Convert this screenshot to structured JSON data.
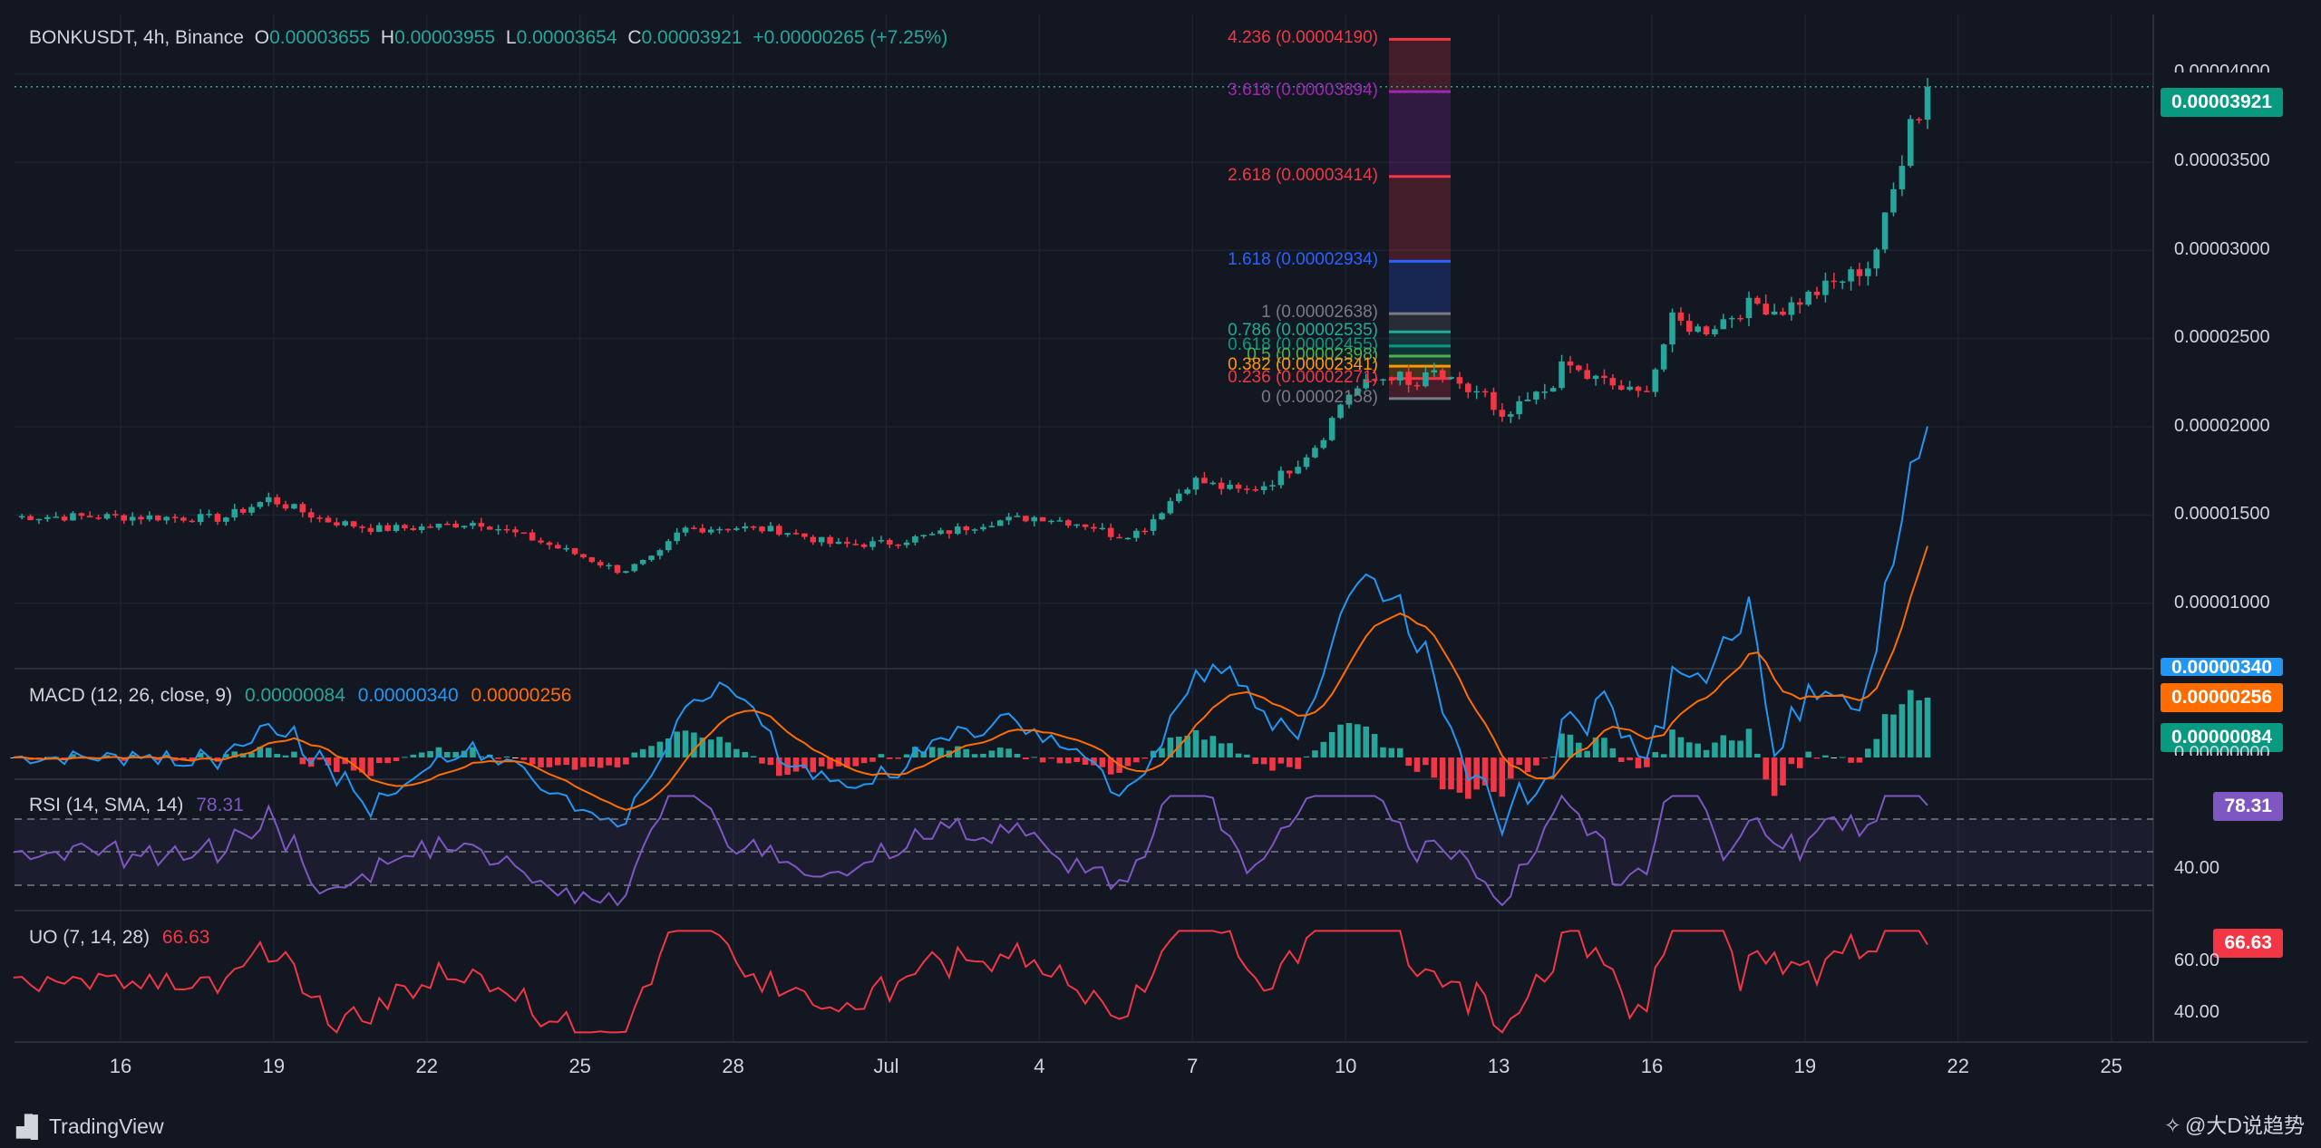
{
  "header": {
    "symbol": "BONKUSDT, 4h, Binance",
    "o_label": "O",
    "o_value": "0.00003655",
    "h_label": "H",
    "h_value": "0.00003955",
    "l_label": "L",
    "l_value": "0.00003654",
    "c_label": "C",
    "c_value": "0.00003921",
    "change": "+0.00000265 (+7.25%)"
  },
  "price_badge": "0.00003921",
  "price_axis": [
    "0.00004000",
    "0.00003500",
    "0.00003000",
    "0.00002500",
    "0.00002000",
    "0.00001500",
    "0.00001000"
  ],
  "fib_levels": [
    {
      "label": "4.236 (0.00004190)",
      "value": 4.19e-05,
      "color": "#f23645"
    },
    {
      "label": "3.618 (0.00003894)",
      "value": 3.894e-05,
      "color": "#9c27b0"
    },
    {
      "label": "2.618 (0.00003414)",
      "value": 3.414e-05,
      "color": "#f23645"
    },
    {
      "label": "1.618 (0.00002934)",
      "value": 2.934e-05,
      "color": "#2962ff"
    },
    {
      "label": "1 (0.00002638)",
      "value": 2.638e-05,
      "color": "#787b86"
    },
    {
      "label": "0.786 (0.00002535)",
      "value": 2.535e-05,
      "color": "#22ab94"
    },
    {
      "label": "0.618 (0.00002455)",
      "value": 2.455e-05,
      "color": "#089981"
    },
    {
      "label": "0.5 (0.00002398)",
      "value": 2.398e-05,
      "color": "#4caf50"
    },
    {
      "label": "0.382 (0.00002341)",
      "value": 2.341e-05,
      "color": "#ff9800"
    },
    {
      "label": "0.236 (0.00002271)",
      "value": 2.271e-05,
      "color": "#f23645"
    },
    {
      "label": "0 (0.00002158)",
      "value": 2.158e-05,
      "color": "#787b86"
    }
  ],
  "macd": {
    "title": "MACD (12, 26, close, 9)",
    "hist": "0.00000084",
    "macd": "0.00000340",
    "signal": "0.00000256",
    "axis_zero": "0.00000000"
  },
  "rsi": {
    "title": "RSI (14, SMA, 14)",
    "value": "78.31",
    "axis": "40.00"
  },
  "uo": {
    "title": "UO (7, 14, 28)",
    "value": "66.63",
    "axis": [
      "60.00",
      "40.00"
    ]
  },
  "x_axis": [
    "16",
    "19",
    "22",
    "25",
    "28",
    "Jul",
    "4",
    "7",
    "10",
    "13",
    "16",
    "19",
    "22",
    "25"
  ],
  "branding": {
    "left": "TradingView",
    "right": "@大D说趋势"
  },
  "colors": {
    "up": "#26a69a",
    "down": "#f23645",
    "macd": "#2196f3",
    "signal": "#ff6d00",
    "rsi": "#7e57c2",
    "uo": "#f23645",
    "bg": "#131722"
  },
  "chart_data": {
    "type": "candlestick",
    "title": "BONKUSDT, 4h, Binance",
    "ylim": [
      6.3e-06,
      4.33e-05
    ],
    "anchors": [
      {
        "day": 0,
        "close": 1.49e-05
      },
      {
        "day": 2,
        "close": 1.48e-05
      },
      {
        "day": 2.9,
        "close": 1.59e-05
      },
      {
        "day": 4,
        "close": 1.47e-05
      },
      {
        "day": 5,
        "close": 1.42e-05
      },
      {
        "day": 6,
        "close": 1.43e-05
      },
      {
        "day": 7,
        "close": 1.46e-05
      },
      {
        "day": 8,
        "close": 1.37e-05
      },
      {
        "day": 9,
        "close": 1.27e-05
      },
      {
        "day": 9.8,
        "close": 1.18e-05
      },
      {
        "day": 10.5,
        "close": 1.26e-05
      },
      {
        "day": 11,
        "close": 1.42e-05
      },
      {
        "day": 12,
        "close": 1.43e-05
      },
      {
        "day": 13,
        "close": 1.41e-05
      },
      {
        "day": 14,
        "close": 1.33e-05
      },
      {
        "day": 15,
        "close": 1.34e-05
      },
      {
        "day": 16,
        "close": 1.39e-05
      },
      {
        "day": 17,
        "close": 1.46e-05
      },
      {
        "day": 18,
        "close": 1.49e-05
      },
      {
        "day": 19,
        "close": 1.44e-05
      },
      {
        "day": 19.5,
        "close": 1.38e-05
      },
      {
        "day": 20,
        "close": 1.41e-05
      },
      {
        "day": 20.5,
        "close": 1.56e-05
      },
      {
        "day": 21,
        "close": 1.7e-05
      },
      {
        "day": 21.5,
        "close": 1.66e-05
      },
      {
        "day": 22,
        "close": 1.63e-05
      },
      {
        "day": 22.5,
        "close": 1.68e-05
      },
      {
        "day": 23,
        "close": 1.78e-05
      },
      {
        "day": 23.5,
        "close": 1.92e-05
      },
      {
        "day": 24,
        "close": 2.18e-05
      },
      {
        "day": 24.5,
        "close": 2.25e-05
      },
      {
        "day": 25,
        "close": 2.3e-05
      },
      {
        "day": 25.3,
        "close": 2.2e-05
      },
      {
        "day": 25.7,
        "close": 2.31e-05
      },
      {
        "day": 26.3,
        "close": 2.2e-05
      },
      {
        "day": 26.7,
        "close": 2.2e-05
      },
      {
        "day": 27,
        "close": 2.01e-05
      },
      {
        "day": 27.5,
        "close": 2.13e-05
      },
      {
        "day": 28,
        "close": 2.22e-05
      },
      {
        "day": 28.3,
        "close": 2.36e-05
      },
      {
        "day": 28.7,
        "close": 2.28e-05
      },
      {
        "day": 29,
        "close": 2.26e-05
      },
      {
        "day": 29.5,
        "close": 2.2e-05
      },
      {
        "day": 29.8,
        "close": 2.18e-05
      },
      {
        "day": 30,
        "close": 2.28e-05
      },
      {
        "day": 30.4,
        "close": 2.6e-05
      },
      {
        "day": 31,
        "close": 2.54e-05
      },
      {
        "day": 32,
        "close": 2.7e-05
      },
      {
        "day": 32.5,
        "close": 2.65e-05
      },
      {
        "day": 33,
        "close": 2.73e-05
      },
      {
        "day": 33.8,
        "close": 2.84e-05
      },
      {
        "day": 34.3,
        "close": 2.92e-05
      },
      {
        "day": 34.5,
        "close": 3.1e-05
      },
      {
        "day": 34.8,
        "close": 3.4e-05
      },
      {
        "day": 35,
        "close": 3.65e-05
      },
      {
        "day": 35.1,
        "close": 3.85e-05
      },
      {
        "day": 35.2,
        "close": 3.7e-05
      },
      {
        "day": 35.4,
        "close": 3.921e-05
      }
    ]
  }
}
